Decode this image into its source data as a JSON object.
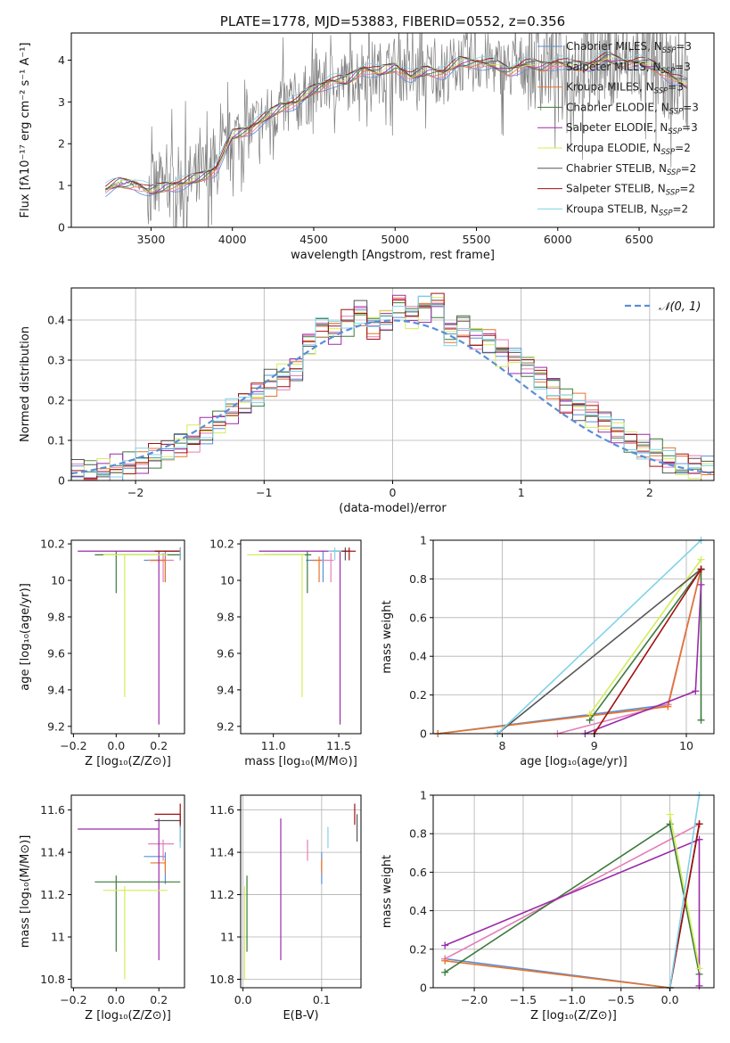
{
  "colors": {
    "chabrier_miles": "#5a8fd6",
    "salpeter_miles": "#e57fb8",
    "kroupa_miles": "#e8742a",
    "chabrier_elodie": "#3c7a3c",
    "salpeter_elodie": "#9b2ba8",
    "kroupa_elodie": "#d4ec5a",
    "chabrier_stelib": "#555555",
    "salpeter_stelib": "#a01010",
    "kroupa_stelib": "#7fd3e8",
    "grid": "#b0b0b0",
    "spectrum": "#808080"
  },
  "chart_data": [
    {
      "id": "spectrum",
      "type": "line",
      "title": "PLATE=1778, MJD=53883, FIBERID=0552, z=0.356",
      "xlabel": "wavelength [Angstrom, rest frame]",
      "ylabel": "Flux [fλ10⁻¹⁷ erg cm⁻² s⁻¹ A⁻¹]",
      "xlim": [
        3010,
        6960
      ],
      "ylim": [
        0,
        4.65
      ],
      "xticks": [
        3500,
        4000,
        4500,
        5000,
        5500,
        6000,
        6500
      ],
      "yticks": [
        0,
        1,
        2,
        3,
        4
      ],
      "legend_position": "top-right",
      "legend": [
        "Chabrier MILES, N_SSP=3",
        "Salpeter MILES, N_SSP=3",
        "Kroupa MILES, N_SSP=3",
        "Chabrier ELODIE, N_SSP=3",
        "Salpeter ELODIE, N_SSP=3",
        "Kroupa ELODIE, N_SSP=2",
        "Chabrier STELIB, N_SSP=2",
        "Salpeter STELIB, N_SSP=2",
        "Kroupa STELIB, N_SSP=2"
      ],
      "model_continuum": {
        "x": [
          3220,
          3300,
          3400,
          3500,
          3600,
          3700,
          3800,
          3900,
          4000,
          4100,
          4200,
          4300,
          4400,
          4500,
          4600,
          4700,
          4800,
          4900,
          5000,
          5100,
          5200,
          5300,
          5400,
          5500,
          5600,
          5700,
          5800,
          5900,
          6000,
          6100,
          6200,
          6300,
          6400,
          6500,
          6600,
          6700,
          6800
        ],
        "y": [
          0.9,
          1.05,
          1.05,
          0.85,
          1.0,
          1.05,
          1.2,
          1.4,
          2.2,
          2.35,
          2.6,
          2.9,
          3.0,
          3.3,
          3.5,
          3.5,
          3.8,
          3.7,
          3.85,
          3.6,
          3.75,
          3.7,
          3.95,
          3.95,
          3.9,
          3.75,
          3.9,
          3.85,
          3.95,
          3.85,
          3.9,
          4.05,
          3.95,
          3.95,
          3.85,
          3.6,
          3.4
        ]
      }
    },
    {
      "id": "residuals",
      "type": "bar",
      "xlabel": "(data-model)/error",
      "ylabel": "Normed distribution",
      "xlim": [
        -2.5,
        2.5
      ],
      "ylim": [
        0,
        0.48
      ],
      "xticks": [
        -2,
        -1,
        0,
        1,
        2
      ],
      "xtick_labels": [
        "−2",
        "−1",
        "0",
        "1",
        "2"
      ],
      "yticks": [
        0.0,
        0.1,
        0.2,
        0.3,
        0.4
      ],
      "grid": true,
      "legend_position": "top-right",
      "legend": [
        "𝒩(0, 1)"
      ],
      "bin_centers": [
        -2.45,
        -2.35,
        -2.25,
        -2.15,
        -2.05,
        -1.95,
        -1.85,
        -1.75,
        -1.65,
        -1.55,
        -1.45,
        -1.35,
        -1.25,
        -1.15,
        -1.05,
        -0.95,
        -0.85,
        -0.75,
        -0.65,
        -0.55,
        -0.45,
        -0.35,
        -0.25,
        -0.15,
        -0.05,
        0.05,
        0.15,
        0.25,
        0.35,
        0.45,
        0.55,
        0.65,
        0.75,
        0.85,
        0.95,
        1.05,
        1.15,
        1.25,
        1.35,
        1.45,
        1.55,
        1.65,
        1.75,
        1.85,
        1.95,
        2.05,
        2.15,
        2.25,
        2.35,
        2.45
      ],
      "series_values": [
        0.018,
        0.021,
        0.026,
        0.032,
        0.038,
        0.045,
        0.058,
        0.072,
        0.088,
        0.105,
        0.125,
        0.148,
        0.17,
        0.19,
        0.215,
        0.245,
        0.26,
        0.28,
        0.345,
        0.38,
        0.37,
        0.395,
        0.42,
        0.385,
        0.405,
        0.44,
        0.41,
        0.43,
        0.44,
        0.37,
        0.39,
        0.36,
        0.35,
        0.32,
        0.3,
        0.285,
        0.26,
        0.235,
        0.2,
        0.185,
        0.165,
        0.145,
        0.12,
        0.1,
        0.085,
        0.07,
        0.05,
        0.038,
        0.03,
        0.025
      ]
    },
    {
      "id": "age-vs-Z",
      "type": "scatter",
      "xlabel": "Z [log₁₀(Z/Z⊙)]",
      "ylabel": "age  [log₁₀(age/yr)]",
      "xlim": [
        -0.21,
        0.32
      ],
      "ylim": [
        9.16,
        10.22
      ],
      "xticks": [
        -0.2,
        0,
        0.2
      ],
      "xtick_labels": [
        "−0.2",
        "0.0",
        "0.2"
      ],
      "yticks": [
        9.2,
        9.4,
        9.6,
        9.8,
        10.0,
        10.2
      ]
    },
    {
      "id": "age-vs-mass",
      "type": "scatter",
      "xlabel": "mass [log₁₀(M/M⊙)]",
      "ylabel": "",
      "xlim": [
        10.75,
        11.67
      ],
      "ylim": [
        9.16,
        10.22
      ],
      "xticks": [
        11.0,
        11.5
      ],
      "xtick_labels": [
        "11.0",
        "11.5"
      ],
      "yticks": [
        9.2,
        9.4,
        9.6,
        9.8,
        10.0,
        10.2
      ]
    },
    {
      "id": "weight-vs-age",
      "type": "line",
      "xlabel": "age  [log₁₀(age/yr)]",
      "ylabel": "mass weight",
      "xlim": [
        7.25,
        10.3
      ],
      "ylim": [
        0,
        1.0
      ],
      "xticks": [
        8,
        9,
        10
      ],
      "yticks": [
        0.0,
        0.2,
        0.4,
        0.6,
        0.8,
        1.0
      ],
      "grid": true
    },
    {
      "id": "mass-vs-Z",
      "type": "scatter",
      "xlabel": "Z [log₁₀(Z/Z⊙)]",
      "ylabel": "mass [log₁₀(M/M⊙)]",
      "xlim": [
        -0.21,
        0.32
      ],
      "ylim": [
        10.76,
        11.67
      ],
      "xticks": [
        -0.2,
        0,
        0.2
      ],
      "xtick_labels": [
        "−0.2",
        "0.0",
        "0.2"
      ],
      "yticks": [
        10.8,
        11.0,
        11.2,
        11.4,
        11.6
      ]
    },
    {
      "id": "mass-vs-ebv",
      "type": "scatter",
      "xlabel": "E(B-V)",
      "ylabel": "",
      "xlim": [
        -0.003,
        0.15
      ],
      "ylim": [
        10.76,
        11.67
      ],
      "xticks": [
        0.0,
        0.1
      ],
      "xtick_labels": [
        "0.0",
        "0.1"
      ],
      "yticks": [
        10.8,
        11.0,
        11.2,
        11.4,
        11.6
      ],
      "grid": true
    },
    {
      "id": "weight-vs-Z",
      "type": "line",
      "xlabel": "Z [log₁₀(Z/Z⊙)]",
      "ylabel": "mass weight",
      "xlim": [
        -2.42,
        0.45
      ],
      "ylim": [
        0,
        1.0
      ],
      "xticks": [
        -2.0,
        -1.5,
        -1.0,
        -0.5,
        0.0
      ],
      "xtick_labels": [
        "−2.0",
        "−1.5",
        "−1.0",
        "−0.5",
        "0.0"
      ],
      "yticks": [
        0.0,
        0.2,
        0.4,
        0.6,
        0.8,
        1.0
      ],
      "grid": true
    }
  ],
  "fit_results": {
    "models": [
      "chabrier_miles",
      "salpeter_miles",
      "kroupa_miles",
      "chabrier_elodie",
      "salpeter_elodie",
      "kroupa_elodie",
      "chabrier_stelib",
      "salpeter_stelib",
      "kroupa_stelib"
    ],
    "age": [
      10.11,
      10.11,
      10.11,
      10.14,
      10.16,
      10.14,
      10.16,
      10.16,
      10.16
    ],
    "age_err_lo": [
      0.12,
      0.12,
      0.12,
      0.21,
      0.95,
      0.78,
      0.05,
      0.05,
      0.05
    ],
    "age_err_hi": [
      0.05,
      0.04,
      0.02,
      0.02,
      0.0,
      0.0,
      0.02,
      0.02,
      0.02
    ],
    "Z": [
      0.23,
      0.22,
      0.23,
      0.0,
      0.2,
      0.04,
      0.3,
      0.3,
      0.3
    ],
    "Z_err_lo": [
      0.1,
      0.07,
      0.07,
      0.1,
      0.38,
      0.1,
      0.12,
      0.12,
      0.0
    ],
    "Z_err_hi": [
      0.0,
      0.05,
      0.0,
      0.3,
      0.0,
      0.2,
      0.0,
      0.0,
      0.0
    ],
    "mass": [
      11.38,
      11.44,
      11.35,
      11.26,
      11.51,
      11.22,
      11.55,
      11.58,
      11.47
    ],
    "mass_err_lo": [
      0.13,
      0.08,
      0.05,
      0.33,
      0.62,
      0.42,
      0.1,
      0.05,
      0.05
    ],
    "mass_err_hi": [
      0.02,
      0.02,
      0.02,
      0.03,
      0.05,
      0.02,
      0.03,
      0.05,
      0.05
    ],
    "ebv": [
      0.1,
      0.082,
      0.1,
      0.005,
      0.048,
      0.002,
      0.145,
      0.142,
      0.108
    ],
    "weights_age": [
      [
        [
          7.3,
          0.0
        ],
        [
          9.8,
          0.15
        ],
        [
          10.16,
          0.85
        ]
      ],
      [
        [
          8.6,
          0.0
        ],
        [
          9.8,
          0.15
        ],
        [
          10.16,
          0.85
        ]
      ],
      [
        [
          7.3,
          0.0
        ],
        [
          9.8,
          0.14
        ],
        [
          10.16,
          0.85
        ]
      ],
      [
        [
          8.95,
          0.07
        ],
        [
          10.16,
          0.85
        ],
        [
          10.16,
          0.07
        ]
      ],
      [
        [
          8.9,
          0.0
        ],
        [
          10.1,
          0.22
        ],
        [
          10.16,
          0.77
        ]
      ],
      [
        [
          8.95,
          0.1
        ],
        [
          10.16,
          0.9
        ]
      ],
      [
        [
          7.95,
          0.0
        ],
        [
          10.16,
          0.85
        ]
      ],
      [
        [
          9.0,
          0.0
        ],
        [
          10.16,
          0.85
        ]
      ],
      [
        [
          7.95,
          0.0
        ],
        [
          10.16,
          1.0
        ]
      ]
    ],
    "weights_Z": [
      [
        [
          -2.3,
          0.15
        ],
        [
          0.0,
          0.0
        ],
        [
          0.3,
          0.85
        ]
      ],
      [
        [
          -2.3,
          0.15
        ],
        [
          0.3,
          0.85
        ]
      ],
      [
        [
          -2.3,
          0.14
        ],
        [
          0.0,
          0.0
        ],
        [
          0.3,
          0.85
        ]
      ],
      [
        [
          -2.3,
          0.08
        ],
        [
          0.0,
          0.85
        ],
        [
          0.3,
          0.07
        ]
      ],
      [
        [
          -2.3,
          0.22
        ],
        [
          0.3,
          0.77
        ],
        [
          0.3,
          0.01
        ]
      ],
      [
        [
          0.0,
          0.9
        ],
        [
          0.3,
          0.1
        ]
      ],
      [
        [
          0.0,
          0.0
        ],
        [
          0.3,
          0.85
        ]
      ],
      [
        [
          0.0,
          0.0
        ],
        [
          0.3,
          0.85
        ]
      ],
      [
        [
          0.0,
          0.0
        ],
        [
          0.3,
          1.0
        ]
      ]
    ]
  }
}
